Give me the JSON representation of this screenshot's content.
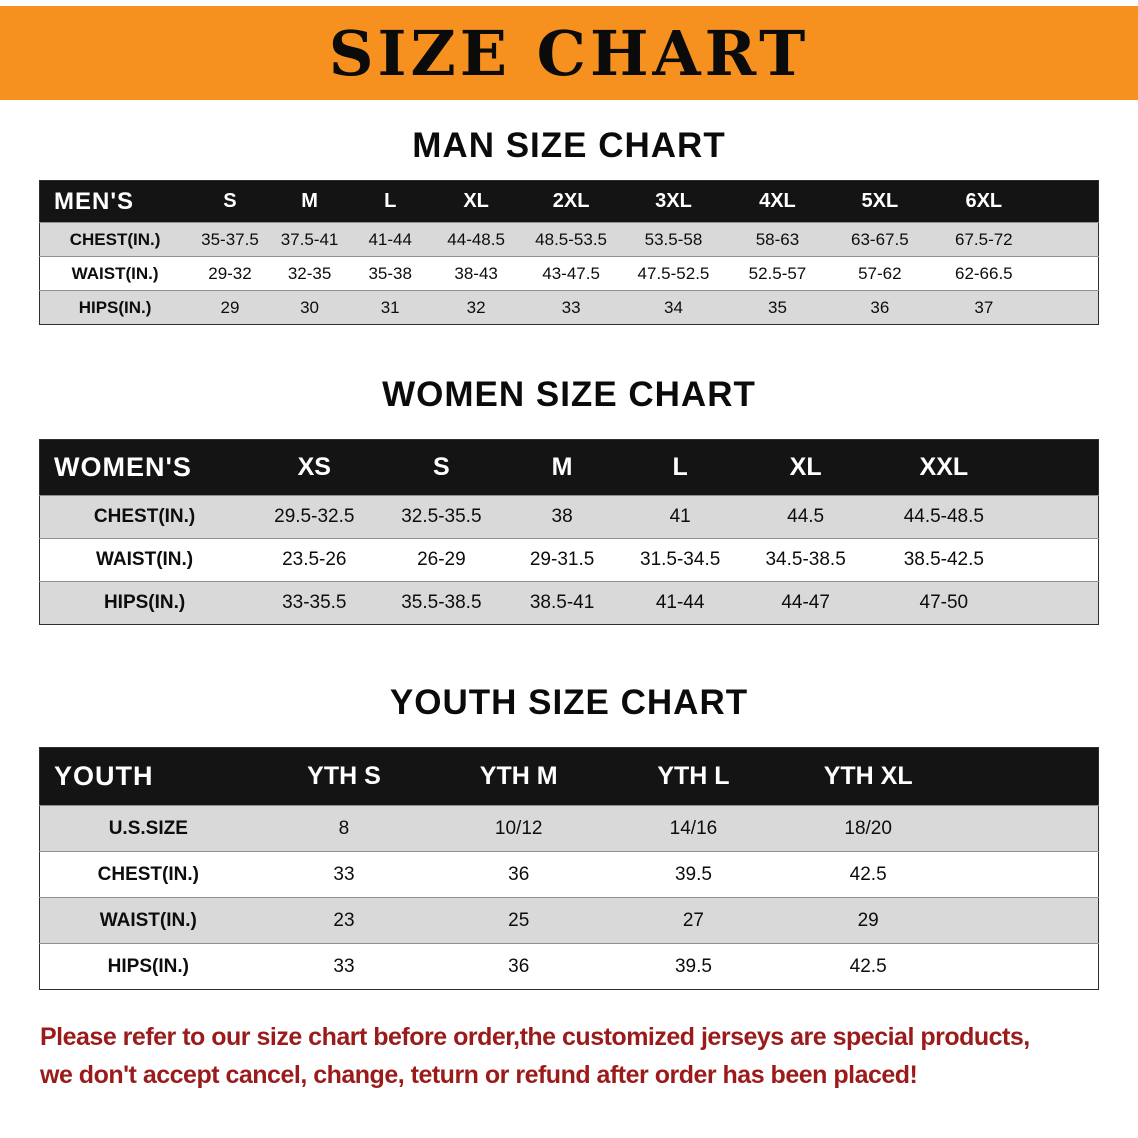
{
  "banner": {
    "title": "SIZE CHART",
    "bg_color": "#F6901E"
  },
  "chart_data": [
    {
      "type": "table",
      "title": "MAN SIZE CHART",
      "columns": [
        "MEN'S",
        "S",
        "M",
        "L",
        "XL",
        "2XL",
        "3XL",
        "4XL",
        "5XL",
        "6XL"
      ],
      "rows": [
        [
          "CHEST(IN.)",
          "35-37.5",
          "37.5-41",
          "41-44",
          "44-48.5",
          "48.5-53.5",
          "53.5-58",
          "58-63",
          "63-67.5",
          "67.5-72"
        ],
        [
          "WAIST(IN.)",
          "29-32",
          "32-35",
          "35-38",
          "38-43",
          "43-47.5",
          "47.5-52.5",
          "52.5-57",
          "57-62",
          "62-66.5"
        ],
        [
          "HIPS(IN.)",
          "29",
          "30",
          "31",
          "32",
          "33",
          "34",
          "35",
          "36",
          "37"
        ]
      ]
    },
    {
      "type": "table",
      "title": "WOMEN SIZE CHART",
      "columns": [
        "WOMEN'S",
        "XS",
        "S",
        "M",
        "L",
        "XL",
        "XXL"
      ],
      "rows": [
        [
          "CHEST(IN.)",
          "29.5-32.5",
          "32.5-35.5",
          "38",
          "41",
          "44.5",
          "44.5-48.5"
        ],
        [
          "WAIST(IN.)",
          "23.5-26",
          "26-29",
          "29-31.5",
          "31.5-34.5",
          "34.5-38.5",
          "38.5-42.5"
        ],
        [
          "HIPS(IN.)",
          "33-35.5",
          "35.5-38.5",
          "38.5-41",
          "41-44",
          "44-47",
          "47-50"
        ]
      ]
    },
    {
      "type": "table",
      "title": "YOUTH SIZE CHART",
      "columns": [
        "YOUTH",
        "YTH S",
        "YTH M",
        "YTH L",
        "YTH XL"
      ],
      "rows": [
        [
          "U.S.SIZE",
          "8",
          "10/12",
          "14/16",
          "18/20"
        ],
        [
          "CHEST(IN.)",
          "33",
          "36",
          "39.5",
          "42.5"
        ],
        [
          "WAIST(IN.)",
          "23",
          "25",
          "27",
          "29"
        ],
        [
          "HIPS(IN.)",
          "33",
          "36",
          "39.5",
          "42.5"
        ]
      ]
    }
  ],
  "footer": {
    "lines": [
      "Please refer to our size chart before order,the customized jerseys are special products,",
      "we don't accept cancel, change, teturn or refund after order has been placed!"
    ],
    "text_color": "#9B1B1B"
  }
}
